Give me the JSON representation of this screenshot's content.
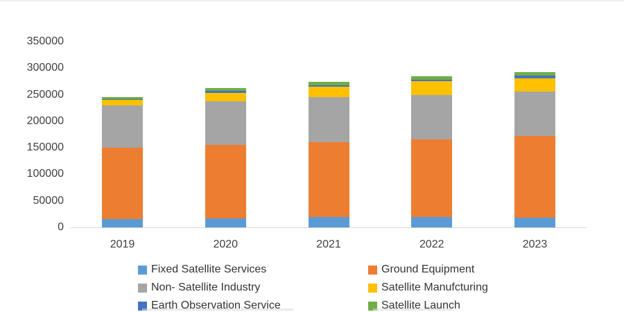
{
  "chart_data": {
    "type": "bar",
    "stacked": true,
    "title": "",
    "xlabel": "",
    "ylabel": "",
    "categories": [
      "2019",
      "2020",
      "2021",
      "2022",
      "2023"
    ],
    "series": [
      {
        "name": "Fixed Satellite Services",
        "color": "#5B9BD5",
        "values": [
          16000,
          17000,
          19000,
          19000,
          18000
        ]
      },
      {
        "name": "Ground Equipment",
        "color": "#ED7D31",
        "values": [
          134000,
          139000,
          141000,
          147000,
          154000
        ]
      },
      {
        "name": "Non- Satellite Industry",
        "color": "#A5A5A5",
        "values": [
          80000,
          82000,
          85000,
          84000,
          84000
        ]
      },
      {
        "name": "Satellite Manufcturing",
        "color": "#FFC000",
        "values": [
          10000,
          16000,
          20000,
          25000,
          25000
        ]
      },
      {
        "name": "Earth Observation Service",
        "color": "#4472C4",
        "values": [
          2000,
          3000,
          3000,
          3000,
          5000
        ]
      },
      {
        "name": "Satellite Launch",
        "color": "#70AD47",
        "values": [
          4000,
          5000,
          6000,
          7000,
          7000
        ]
      }
    ],
    "ylim": [
      0,
      350000
    ],
    "yticks": [
      0,
      50000,
      100000,
      150000,
      200000,
      250000,
      300000,
      350000
    ],
    "ytick_labels": [
      "0",
      "50000",
      "100000",
      "150000",
      "200000",
      "250000",
      "300000",
      "350000"
    ],
    "grid": false,
    "legend_position": "bottom",
    "legend_columns": 2,
    "legend_order_row_major": [
      "Fixed Satellite Services",
      "Ground Equipment",
      "Non- Satellite Industry",
      "Satellite Manufcturing",
      "Earth Observation Service",
      "Satellite Launch"
    ],
    "colors": {
      "axis_line": "#D9D9D9",
      "tick_label_text": "#404040",
      "legend_text": "#333333",
      "background": "#FFFFFF"
    }
  }
}
